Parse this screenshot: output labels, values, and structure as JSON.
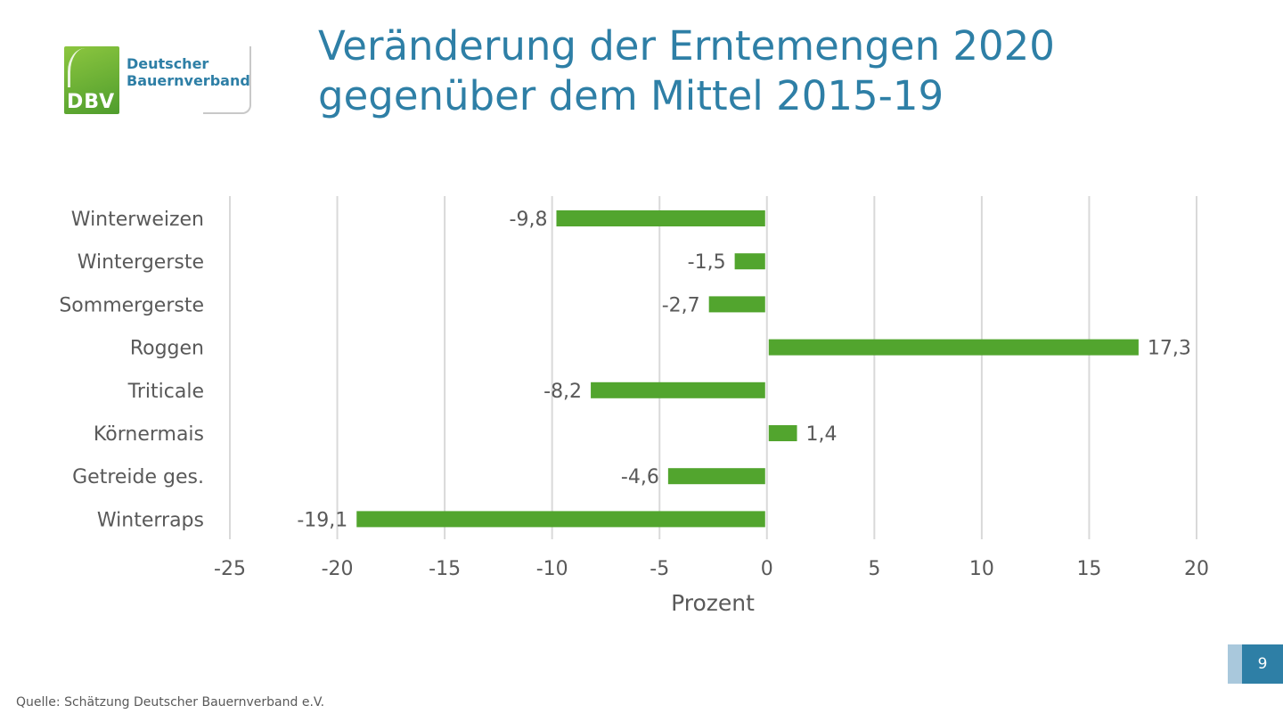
{
  "logo": {
    "abbr": "DBV",
    "name": "Deutscher\nBauernverband"
  },
  "title": "Veränderung der Erntemengen 2020 gegenüber dem Mittel 2015-19",
  "source": "Quelle: Schätzung Deutscher Bauernverband e.V.",
  "page_number": "9",
  "colors": {
    "accent": "#2e7fa6",
    "bar": "#52a52e",
    "grid": "#d9d9d9",
    "text": "#595959"
  },
  "chart_data": {
    "type": "bar",
    "orientation": "horizontal",
    "categories": [
      "Winterweizen",
      "Wintergerste",
      "Sommergerste",
      "Roggen",
      "Triticale",
      "Körnermais",
      "Getreide ges.",
      "Winterraps"
    ],
    "values": [
      -9.8,
      -1.5,
      -2.7,
      17.3,
      -8.2,
      1.4,
      -4.6,
      -19.1
    ],
    "value_labels": [
      "-9,8",
      "-1,5",
      "-2,7",
      "17,3",
      "-8,2",
      "1,4",
      "-4,6",
      "-19,1"
    ],
    "xlabel": "Prozent",
    "ylabel": "",
    "xlim": [
      -25,
      20
    ],
    "xticks": [
      -25,
      -20,
      -15,
      -10,
      -5,
      0,
      5,
      10,
      15,
      20
    ],
    "xtick_labels": [
      "-25",
      "-20",
      "-15",
      "-10",
      "-5",
      "0",
      "5",
      "10",
      "15",
      "20"
    ],
    "grid": true,
    "legend": "none"
  }
}
